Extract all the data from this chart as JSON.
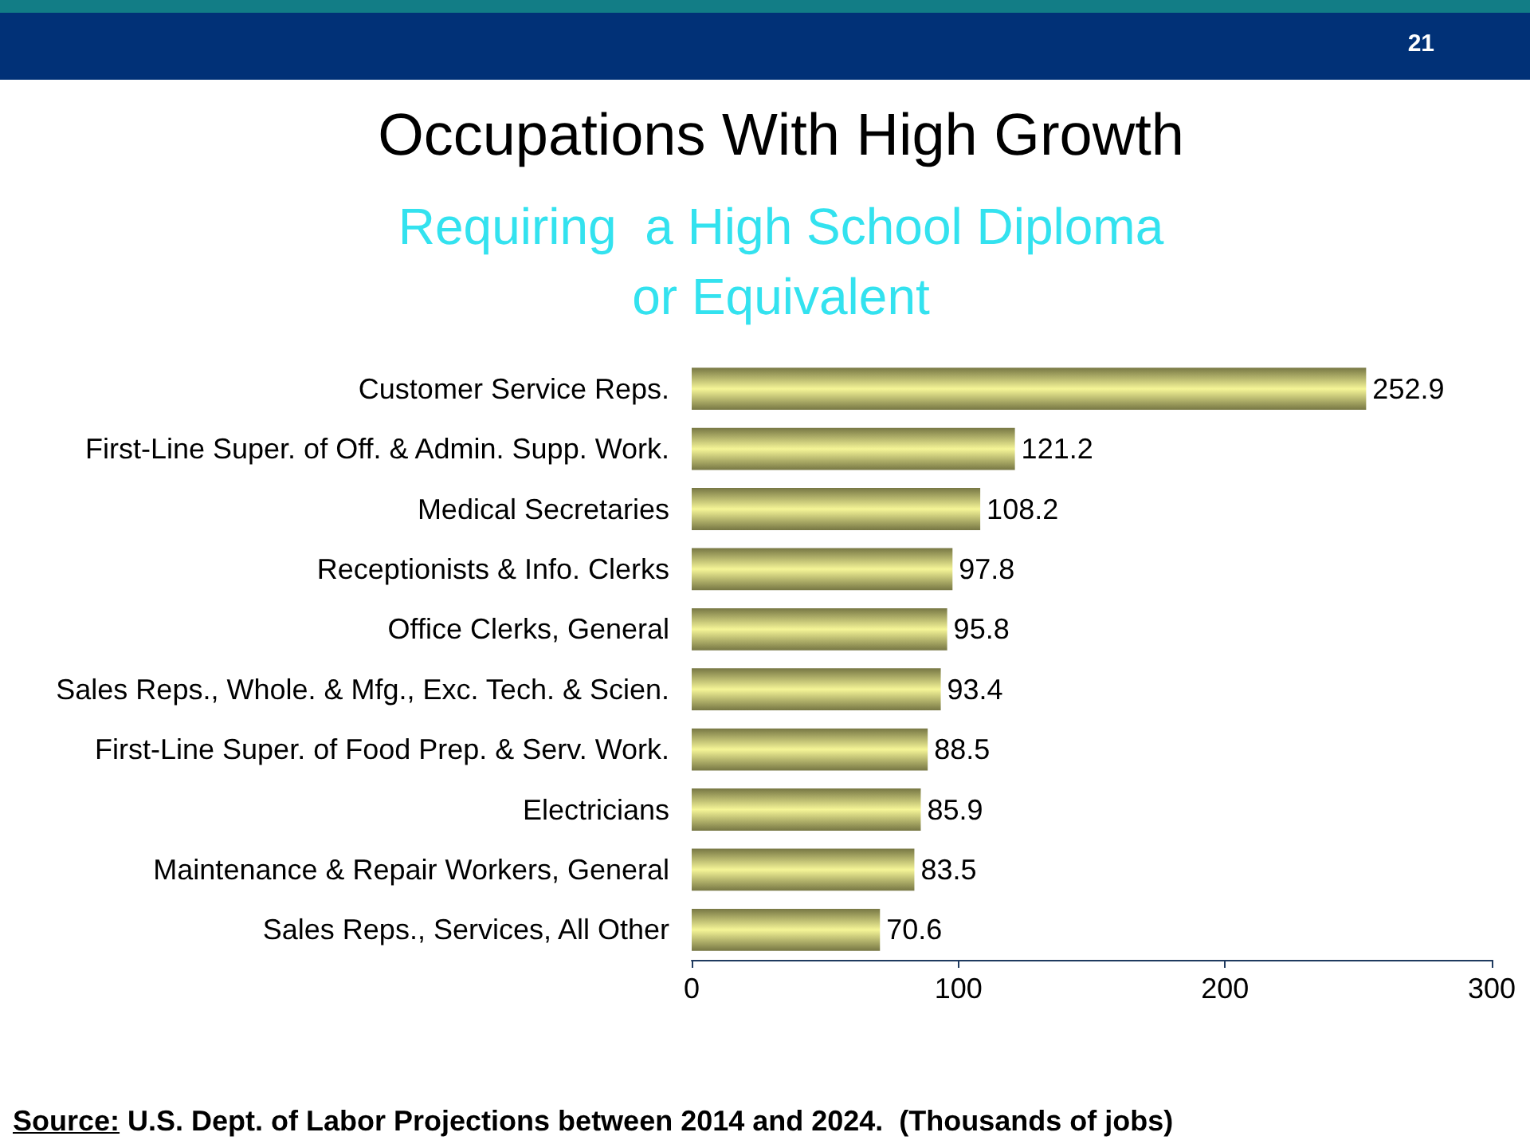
{
  "chart_data": {
    "type": "bar",
    "orientation": "horizontal",
    "title": "Occupations With High Growth",
    "subtitle": "Requiring  a High School Diploma or Equivalent",
    "categories": [
      "Customer Service Reps.",
      "First-Line Super. of Off. & Admin. Supp. Work.",
      "Medical Secretaries",
      "Receptionists & Info. Clerks",
      "Office Clerks, General",
      "Sales Reps., Whole. & Mfg., Exc. Tech. & Scien.",
      "First-Line Super. of Food Prep. & Serv. Work.",
      "Electricians",
      "Maintenance & Repair Workers, General",
      "Sales Reps., Services, All Other"
    ],
    "values": [
      252.9,
      121.2,
      108.2,
      97.8,
      95.8,
      93.4,
      88.5,
      85.9,
      83.5,
      70.6
    ],
    "color": "#d8d87c",
    "xlim": [
      0,
      300
    ],
    "xticks": [
      0,
      100,
      200,
      300
    ],
    "data_labels": true,
    "annotations": [
      "21",
      "Source: U.S. Dept. of Labor Projections between 2014 and 2024.  (Thousands of jobs)"
    ]
  }
}
